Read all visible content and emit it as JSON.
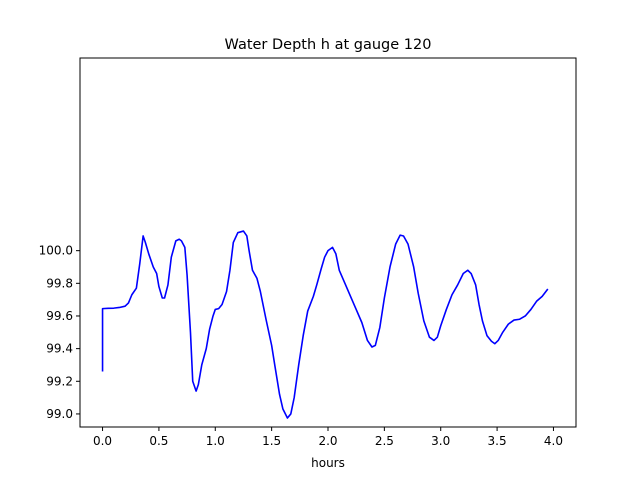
{
  "chart_data": {
    "type": "line",
    "title": "Water Depth h at gauge 120",
    "xlabel": "hours",
    "ylabel": "",
    "xlim": [
      -0.2,
      4.2
    ],
    "ylim": [
      98.92,
      101.18
    ],
    "xticks": [
      0.0,
      0.5,
      1.0,
      1.5,
      2.0,
      2.5,
      3.0,
      3.5,
      4.0
    ],
    "xtick_labels": [
      "0.0",
      "0.5",
      "1.0",
      "1.5",
      "2.0",
      "2.5",
      "3.0",
      "3.5",
      "4.0"
    ],
    "yticks": [
      99.0,
      99.2,
      99.4,
      99.6,
      99.8,
      100.0
    ],
    "ytick_labels": [
      "99.0",
      "99.2",
      "99.4",
      "99.6",
      "99.8",
      "100.0"
    ],
    "grid": false,
    "series": [
      {
        "color": "#0000ff",
        "points": [
          [
            0.0,
            99.26
          ],
          [
            0.0,
            99.645
          ],
          [
            0.05,
            99.647
          ],
          [
            0.1,
            99.648
          ],
          [
            0.15,
            99.652
          ],
          [
            0.2,
            99.66
          ],
          [
            0.23,
            99.68
          ],
          [
            0.26,
            99.73
          ],
          [
            0.3,
            99.77
          ],
          [
            0.33,
            99.92
          ],
          [
            0.36,
            100.09
          ],
          [
            0.38,
            100.05
          ],
          [
            0.41,
            99.98
          ],
          [
            0.45,
            99.9
          ],
          [
            0.48,
            99.86
          ],
          [
            0.5,
            99.78
          ],
          [
            0.53,
            99.71
          ],
          [
            0.55,
            99.71
          ],
          [
            0.58,
            99.79
          ],
          [
            0.61,
            99.96
          ],
          [
            0.65,
            100.06
          ],
          [
            0.68,
            100.07
          ],
          [
            0.7,
            100.06
          ],
          [
            0.73,
            100.02
          ],
          [
            0.75,
            99.85
          ],
          [
            0.78,
            99.5
          ],
          [
            0.8,
            99.2
          ],
          [
            0.83,
            99.14
          ],
          [
            0.85,
            99.18
          ],
          [
            0.88,
            99.3
          ],
          [
            0.92,
            99.4
          ],
          [
            0.95,
            99.52
          ],
          [
            0.98,
            99.6
          ],
          [
            1.0,
            99.64
          ],
          [
            1.03,
            99.645
          ],
          [
            1.06,
            99.67
          ],
          [
            1.1,
            99.75
          ],
          [
            1.13,
            99.88
          ],
          [
            1.16,
            100.05
          ],
          [
            1.2,
            100.11
          ],
          [
            1.25,
            100.12
          ],
          [
            1.28,
            100.09
          ],
          [
            1.3,
            100.0
          ],
          [
            1.33,
            99.88
          ],
          [
            1.37,
            99.83
          ],
          [
            1.4,
            99.75
          ],
          [
            1.45,
            99.58
          ],
          [
            1.5,
            99.42
          ],
          [
            1.53,
            99.29
          ],
          [
            1.57,
            99.12
          ],
          [
            1.6,
            99.03
          ],
          [
            1.64,
            98.975
          ],
          [
            1.67,
            99.0
          ],
          [
            1.7,
            99.1
          ],
          [
            1.74,
            99.3
          ],
          [
            1.78,
            99.48
          ],
          [
            1.82,
            99.63
          ],
          [
            1.87,
            99.72
          ],
          [
            1.9,
            99.79
          ],
          [
            1.94,
            99.89
          ],
          [
            1.97,
            99.96
          ],
          [
            2.0,
            100.0
          ],
          [
            2.04,
            100.02
          ],
          [
            2.07,
            99.98
          ],
          [
            2.1,
            99.88
          ],
          [
            2.15,
            99.8
          ],
          [
            2.2,
            99.72
          ],
          [
            2.25,
            99.64
          ],
          [
            2.3,
            99.56
          ],
          [
            2.35,
            99.45
          ],
          [
            2.39,
            99.41
          ],
          [
            2.42,
            99.42
          ],
          [
            2.46,
            99.53
          ],
          [
            2.5,
            99.71
          ],
          [
            2.55,
            99.9
          ],
          [
            2.6,
            100.04
          ],
          [
            2.64,
            100.095
          ],
          [
            2.67,
            100.09
          ],
          [
            2.71,
            100.04
          ],
          [
            2.76,
            99.9
          ],
          [
            2.8,
            99.74
          ],
          [
            2.85,
            99.57
          ],
          [
            2.9,
            99.47
          ],
          [
            2.94,
            99.45
          ],
          [
            2.97,
            99.47
          ],
          [
            3.0,
            99.54
          ],
          [
            3.05,
            99.64
          ],
          [
            3.1,
            99.73
          ],
          [
            3.15,
            99.79
          ],
          [
            3.2,
            99.86
          ],
          [
            3.24,
            99.88
          ],
          [
            3.27,
            99.86
          ],
          [
            3.31,
            99.79
          ],
          [
            3.34,
            99.67
          ],
          [
            3.37,
            99.57
          ],
          [
            3.41,
            99.48
          ],
          [
            3.45,
            99.445
          ],
          [
            3.48,
            99.43
          ],
          [
            3.51,
            99.45
          ],
          [
            3.55,
            99.5
          ],
          [
            3.6,
            99.55
          ],
          [
            3.65,
            99.575
          ],
          [
            3.7,
            99.58
          ],
          [
            3.75,
            99.6
          ],
          [
            3.8,
            99.64
          ],
          [
            3.85,
            99.69
          ],
          [
            3.9,
            99.72
          ],
          [
            3.95,
            99.765
          ]
        ]
      }
    ]
  }
}
